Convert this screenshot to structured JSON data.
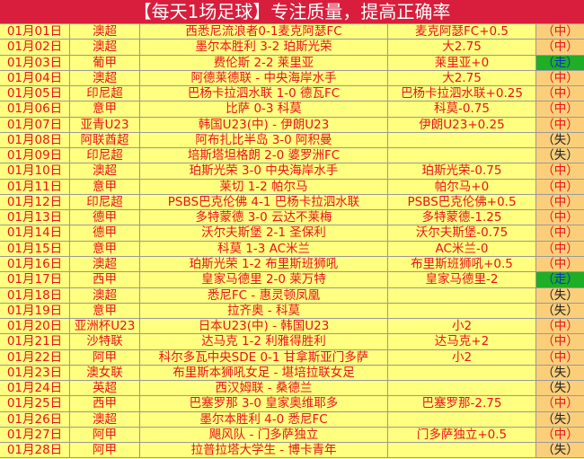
{
  "title": "【每天1场足球】专注质量，提高正确率",
  "colors": {
    "header_bg": "#d81e3c",
    "row_bg": "#ffff80",
    "text": "#e8141c",
    "result_bg": "#fbcf7a",
    "push_bg": "#1fae25",
    "push_text": "#1030c0"
  },
  "rows": [
    [
      "01月01日",
      "澳超",
      "西悉尼流浪者0-1麦克阿瑟FC",
      "麦克阿瑟FC+0.5",
      "（中）"
    ],
    [
      "01月02日",
      "澳超",
      "墨尔本胜利 3-2 珀斯光荣",
      "大2.75",
      "（中）"
    ],
    [
      "01月03日",
      "葡甲",
      "费伦斯 2-2 莱里亚",
      "莱里亚+0",
      "（走）"
    ],
    [
      "01月04日",
      "澳超",
      "阿德莱德联 - 中央海岸水手",
      "大2.75",
      "（中）"
    ],
    [
      "01月05日",
      "印尼超",
      "巴杨卡拉泗水联 1-0 德瓦FC",
      "巴杨卡拉泗水联+0.25",
      "（中）"
    ],
    [
      "01月06日",
      "意甲",
      "比萨 0-3 科莫",
      "科莫-0.75",
      "（中）"
    ],
    [
      "01月07日",
      "亚青U23",
      "韩国U23(中) - 伊朗U23",
      "伊朗U23+0.25",
      "（中）"
    ],
    [
      "01月08日",
      "阿联酋超",
      "阿布扎比半岛 3-0 阿积曼",
      "",
      "（失）"
    ],
    [
      "01月09日",
      "印尼超",
      "培斯塔坦格朗 2-0 婆罗洲FC",
      "",
      "（失）"
    ],
    [
      "01月10日",
      "澳超",
      "珀斯光荣 3-0 中央海岸水手",
      "珀斯光荣-0.75",
      "（中）"
    ],
    [
      "01月11日",
      "意甲",
      "莱切 1-2 帕尔马",
      "帕尔马+0",
      "（中）"
    ],
    [
      "01月12日",
      "印尼超",
      "PSBS巴克伦佛 4-1 巴杨卡拉泗水联",
      "PSBS巴克伦佛+0.5",
      "（中）"
    ],
    [
      "01月13日",
      "德甲",
      "多特蒙德 3-0 云达不莱梅",
      "多特蒙德-1.25",
      "（中）"
    ],
    [
      "01月14日",
      "德甲",
      "沃尔夫斯堡 2-1 圣保利",
      "沃尔夫斯堡-0.75",
      "（中）"
    ],
    [
      "01月15日",
      "意甲",
      "科莫 1-3 AC米兰",
      "AC米兰-0",
      "（中）"
    ],
    [
      "01月16日",
      "澳超",
      "珀斯光荣 1-2 布里斯班狮吼",
      "布里斯班狮吼+0.5",
      "（中）"
    ],
    [
      "01月17日",
      "西甲",
      "皇家马德里 2-0 莱万特",
      "皇家马德里-2",
      "（走）"
    ],
    [
      "01月18日",
      "澳超",
      "悉尼FC - 惠灵顿凤凰",
      "",
      "（失）"
    ],
    [
      "01月19日",
      "意甲",
      "拉齐奥 - 科莫",
      "",
      "（失）"
    ],
    [
      "01月20日",
      "亚洲杯U23",
      "日本U23(中) - 韩国U23",
      "小2",
      "（中）"
    ],
    [
      "01月21日",
      "沙特联",
      "达马克 1-2 利雅得胜利",
      "达马克+2",
      "（中）"
    ],
    [
      "01月22日",
      "阿甲",
      "科尔多瓦中央SDE 0-1 甘拿斯亚门多萨",
      "小2",
      "（中）"
    ],
    [
      "01月23日",
      "澳女联",
      "布里斯本狮吼女足 - 堪培拉联女足",
      "",
      "（失）"
    ],
    [
      "01月24日",
      "英超",
      "西汉姆联 - 桑德兰",
      "",
      "（失）"
    ],
    [
      "01月25日",
      "西甲",
      "巴塞罗那 3-0 皇家奥维耶多",
      "巴塞罗那-2.75",
      "（中）"
    ],
    [
      "01月26日",
      "澳超",
      "墨尔本胜利 4-0 悉尼FC",
      "",
      "（失）"
    ],
    [
      "01月27日",
      "阿甲",
      "飓风队 - 门多萨独立",
      "门多萨独立+0.5",
      "（中）"
    ],
    [
      "01月28日",
      "阿甲",
      "拉普拉塔大学生 - 博卡青年",
      "",
      "（失）"
    ]
  ]
}
